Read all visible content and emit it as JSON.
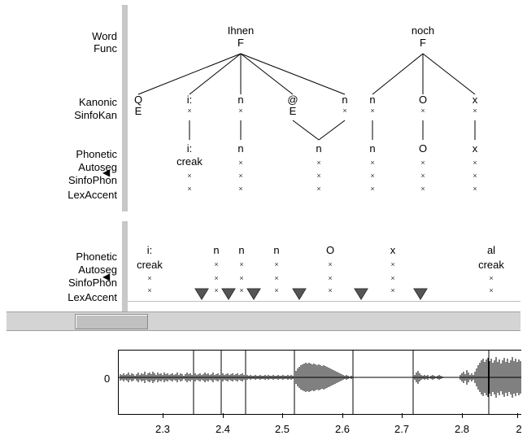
{
  "panel1": {
    "tier_labels": {
      "word": "Word",
      "func": "Func",
      "kanonic": "Kanonic",
      "sinfokan": "SinfoKan",
      "phonetic": "Phonetic",
      "autoseg": "Autoseg",
      "sinfophon": "SinfoPhon",
      "lexaccent": "LexAccent"
    },
    "words": [
      {
        "text": "Ihnen",
        "func": "F"
      },
      {
        "text": "noch",
        "func": "F"
      }
    ],
    "kanonic": [
      {
        "sym": "Q",
        "sub": "E"
      },
      {
        "sym": "i:",
        "sub": "×"
      },
      {
        "sym": "n",
        "sub": "×"
      },
      {
        "sym": "@",
        "sub": "E"
      },
      {
        "sym": "n",
        "sub": "×"
      },
      {
        "sym": "n",
        "sub": "×"
      },
      {
        "sym": "O",
        "sub": "×"
      },
      {
        "sym": "x",
        "sub": "×"
      }
    ],
    "phonetic": [
      {
        "sym": "i:",
        "autoseg": "creak"
      },
      {
        "sym": "n",
        "autoseg": "×"
      },
      {
        "sym": "n",
        "autoseg": "×"
      },
      {
        "sym": "n",
        "autoseg": "×"
      },
      {
        "sym": "O",
        "autoseg": "×"
      },
      {
        "sym": "x",
        "autoseg": "×"
      }
    ],
    "row_marker": "×"
  },
  "panel2": {
    "tier_labels": {
      "phonetic": "Phonetic",
      "autoseg": "Autoseg",
      "sinfophon": "SinfoPhon",
      "lexaccent": "LexAccent"
    },
    "phonetic": [
      {
        "sym": "i:",
        "autoseg": "creak"
      },
      {
        "sym": "n",
        "autoseg": "×"
      },
      {
        "sym": "n",
        "autoseg": "×"
      },
      {
        "sym": "n",
        "autoseg": "×"
      },
      {
        "sym": "O",
        "autoseg": "×"
      },
      {
        "sym": "x",
        "autoseg": "×"
      },
      {
        "sym": "al",
        "autoseg": "creak"
      }
    ],
    "row_marker": "×"
  },
  "waveform": {
    "zero_label": "0",
    "x_ticks": [
      "2.3",
      "2.4",
      "2.5",
      "2.6",
      "2.7",
      "2.8",
      "2"
    ]
  },
  "icons": {
    "tier_arrow": "black-left-triangle",
    "accent_marker": "gray-down-triangle"
  },
  "colors": {
    "divider": "#c8c8c8",
    "scrollbar": "#d4d4d4",
    "marker": "#555555"
  }
}
